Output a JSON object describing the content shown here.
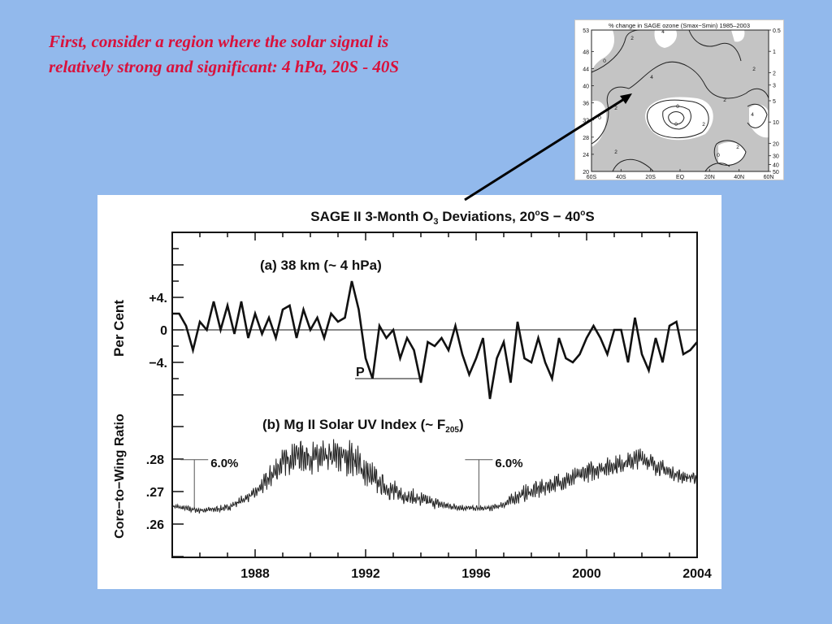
{
  "slide": {
    "heading_lines": [
      "First, consider a region where the solar signal is",
      "relatively strong and significant:  4 hPa, 20S - 40S"
    ],
    "colors": {
      "background": "#92b9ec",
      "heading": "#d9113b",
      "line": "#111111",
      "shading": "#c4c4c4"
    }
  },
  "chart_data": [
    {
      "type": "heatmap",
      "title": "% change in SAGE ozone (Smax−Smin) 1985–2003",
      "x_ticks": [
        "60S",
        "40S",
        "20S",
        "EQ",
        "20N",
        "40N",
        "60N"
      ],
      "y_left_ticks": [
        "53",
        "48",
        "44",
        "40",
        "36",
        "32",
        "28",
        "24",
        "20"
      ],
      "y_right_ticks": [
        "0.5",
        "1",
        "2",
        "3",
        "5",
        "10",
        "20",
        "30",
        "40",
        "50"
      ],
      "contour_labels": [
        "0",
        "2",
        "4",
        "4",
        "2",
        "0",
        "2",
        "2",
        "4",
        "0",
        "2",
        "0",
        "2",
        "0",
        "2"
      ]
    },
    {
      "type": "line",
      "title": "SAGE II 3-Month O",
      "title_sub": "3",
      "title_rest": " Deviations, 20",
      "title_deg": "o",
      "title_mid": "S  −  40",
      "title_deg2": "o",
      "title_end": "S",
      "x_ticks": [
        "1988",
        "1992",
        "1996",
        "2000",
        "2004"
      ],
      "xlim": [
        1985,
        2004
      ],
      "panel_a": {
        "label": "(a) 38 km (~ 4 hPa)",
        "ylabel": "Per Cent",
        "y_ticks": [
          "+4.",
          "0",
          "−4."
        ],
        "ylim": [
          -8,
          12
        ],
        "annotation": "P",
        "x": [
          1985.0,
          1985.25,
          1985.5,
          1985.75,
          1986.0,
          1986.25,
          1986.5,
          1986.75,
          1987.0,
          1987.25,
          1987.5,
          1987.75,
          1988.0,
          1988.25,
          1988.5,
          1988.75,
          1989.0,
          1989.25,
          1989.5,
          1989.75,
          1990.0,
          1990.25,
          1990.5,
          1990.75,
          1991.0,
          1991.25,
          1991.5,
          1991.75,
          1992.0,
          1992.25,
          1992.5,
          1992.75,
          1993.0,
          1993.25,
          1993.5,
          1993.75,
          1994.0,
          1994.25,
          1994.5,
          1994.75,
          1995.0,
          1995.25,
          1995.5,
          1995.75,
          1996.0,
          1996.25,
          1996.5,
          1996.75,
          1997.0,
          1997.25,
          1997.5,
          1997.75,
          1998.0,
          1998.25,
          1998.5,
          1998.75,
          1999.0,
          1999.25,
          1999.5,
          1999.75,
          2000.0,
          2000.25,
          2000.5,
          2000.75,
          2001.0,
          2001.25,
          2001.5,
          2001.75,
          2002.0,
          2002.25,
          2002.5,
          2002.75,
          2003.0,
          2003.25,
          2003.5,
          2003.75,
          2004.0
        ],
        "values": [
          2.0,
          2.0,
          0.5,
          -2.5,
          1.0,
          0.0,
          3.5,
          0.0,
          3.0,
          -0.5,
          3.5,
          -1.0,
          2.0,
          -0.5,
          1.5,
          -1.0,
          2.5,
          3.0,
          -1.0,
          2.5,
          0.0,
          1.5,
          -1.0,
          2.0,
          1.0,
          1.5,
          6.0,
          2.5,
          -3.5,
          -6.0,
          0.5,
          -1.0,
          0.0,
          -3.5,
          -1.0,
          -2.5,
          -6.5,
          -1.5,
          -2.0,
          -1.0,
          -2.5,
          0.5,
          -3.0,
          -5.5,
          -3.5,
          -1.0,
          -8.5,
          -3.5,
          -1.5,
          -6.5,
          1.0,
          -3.5,
          -4.0,
          -1.0,
          -4.0,
          -6.0,
          -1.0,
          -3.5,
          -4.0,
          -3.0,
          -1.0,
          0.5,
          -1.0,
          -3.0,
          0.0,
          0.0,
          -4.0,
          1.5,
          -3.0,
          -5.0,
          -1.0,
          -4.0,
          0.5,
          1.0,
          -3.0,
          -2.5,
          -1.5
        ]
      },
      "panel_b": {
        "label_main": "(b) Mg II Solar UV Index (~ F",
        "label_sub": "205",
        "label_end": ")",
        "ylabel": "Core−to−Wing Ratio",
        "y_ticks": [
          ".28",
          ".27",
          ".26"
        ],
        "ylim": [
          0.25,
          0.2905
        ],
        "annotations": [
          "6.0%",
          "6.0%"
        ],
        "x": [
          1985.0,
          1985.5,
          1986.0,
          1986.5,
          1987.0,
          1987.5,
          1988.0,
          1988.5,
          1989.0,
          1989.5,
          1990.0,
          1990.5,
          1991.0,
          1991.5,
          1992.0,
          1992.5,
          1993.0,
          1993.5,
          1994.0,
          1994.5,
          1995.0,
          1995.5,
          1996.0,
          1996.5,
          1997.0,
          1997.5,
          1998.0,
          1998.5,
          1999.0,
          1999.5,
          2000.0,
          2000.5,
          2001.0,
          2001.5,
          2002.0,
          2002.5,
          2003.0,
          2003.5,
          2004.0
        ],
        "values": [
          0.2655,
          0.2648,
          0.2642,
          0.2645,
          0.265,
          0.2672,
          0.2695,
          0.274,
          0.279,
          0.2815,
          0.2805,
          0.28,
          0.281,
          0.2805,
          0.276,
          0.2725,
          0.27,
          0.2685,
          0.2675,
          0.2665,
          0.2655,
          0.265,
          0.2648,
          0.2648,
          0.266,
          0.2685,
          0.27,
          0.2715,
          0.2728,
          0.274,
          0.276,
          0.2772,
          0.278,
          0.279,
          0.2805,
          0.278,
          0.276,
          0.2745,
          0.274
        ],
        "noise": [
          0.0008,
          0.0008,
          0.0008,
          0.0008,
          0.0009,
          0.0012,
          0.0016,
          0.003,
          0.004,
          0.0045,
          0.0045,
          0.005,
          0.005,
          0.0048,
          0.0042,
          0.0035,
          0.003,
          0.0025,
          0.002,
          0.0015,
          0.001,
          0.0008,
          0.0008,
          0.0008,
          0.001,
          0.002,
          0.0025,
          0.0025,
          0.0025,
          0.0025,
          0.0028,
          0.0025,
          0.0025,
          0.0025,
          0.0028,
          0.0025,
          0.002,
          0.0018,
          0.0015
        ]
      }
    }
  ]
}
